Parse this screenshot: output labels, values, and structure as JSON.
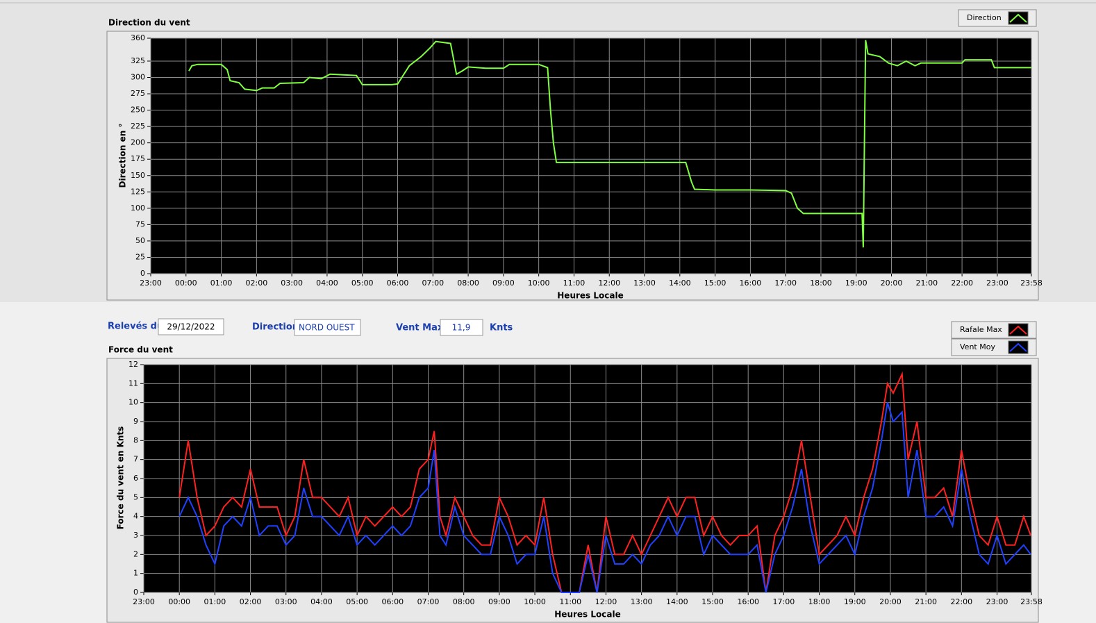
{
  "chart_data": [
    {
      "type": "line",
      "title": "Direction du vent",
      "x_label": "Heures Locale",
      "y_label": "Direction en °",
      "x": [
        0.083,
        0.167,
        0.333,
        1.0,
        1.167,
        1.25,
        1.5,
        1.667,
        2.0,
        2.167,
        2.5,
        2.667,
        3.333,
        3.5,
        3.833,
        4.083,
        4.833,
        5.0,
        5.833,
        6.0,
        6.333,
        6.667,
        6.917,
        7.083,
        7.5,
        7.667,
        7.833,
        8.0,
        8.5,
        9.0,
        9.167,
        9.5,
        10.0,
        10.25,
        10.333,
        10.417,
        10.5,
        11.0,
        13.0,
        14.167,
        14.333,
        14.417,
        15.0,
        16.0,
        17.0,
        17.167,
        17.333,
        17.5,
        18.0,
        19.0,
        19.167,
        19.2,
        19.233,
        19.267,
        19.333,
        19.667,
        19.917,
        20.167,
        20.417,
        20.667,
        20.833,
        21.5,
        22.0,
        22.083,
        22.833,
        22.917,
        23.967
      ],
      "series": [
        {
          "name": "Direction",
          "color": "#80ff40",
          "values": [
            310,
            318,
            320,
            320,
            312,
            295,
            292,
            282,
            280,
            284,
            284,
            291,
            292,
            300,
            298,
            305,
            303,
            289,
            289,
            290,
            318,
            332,
            345,
            355,
            352,
            305,
            310,
            316,
            314,
            314,
            320,
            320,
            320,
            315,
            250,
            200,
            170,
            170,
            170,
            170,
            140,
            129,
            128,
            128,
            127,
            123,
            100,
            92,
            92,
            92,
            92,
            40,
            200,
            357,
            336,
            332,
            322,
            318,
            325,
            318,
            322,
            322,
            322,
            327,
            327,
            315,
            315
          ]
        }
      ],
      "xlim": [
        -1,
        23.967
      ],
      "xticks": [
        {
          "value": -1,
          "label": "23:00"
        },
        {
          "value": 0,
          "label": "00:00"
        },
        {
          "value": 1,
          "label": "01:00"
        },
        {
          "value": 2,
          "label": "02:00"
        },
        {
          "value": 3,
          "label": "03:00"
        },
        {
          "value": 4,
          "label": "04:00"
        },
        {
          "value": 5,
          "label": "05:00"
        },
        {
          "value": 6,
          "label": "06:00"
        },
        {
          "value": 7,
          "label": "07:00"
        },
        {
          "value": 8,
          "label": "08:00"
        },
        {
          "value": 9,
          "label": "09:00"
        },
        {
          "value": 10,
          "label": "10:00"
        },
        {
          "value": 11,
          "label": "11:00"
        },
        {
          "value": 12,
          "label": "12:00"
        },
        {
          "value": 13,
          "label": "13:00"
        },
        {
          "value": 14,
          "label": "14:00"
        },
        {
          "value": 15,
          "label": "15:00"
        },
        {
          "value": 16,
          "label": "16:00"
        },
        {
          "value": 17,
          "label": "17:00"
        },
        {
          "value": 18,
          "label": "18:00"
        },
        {
          "value": 19,
          "label": "19:00"
        },
        {
          "value": 20,
          "label": "20:00"
        },
        {
          "value": 21,
          "label": "21:00"
        },
        {
          "value": 22,
          "label": "22:00"
        },
        {
          "value": 23,
          "label": "23:00"
        },
        {
          "value": 23.967,
          "label": "23:58"
        }
      ],
      "ylim": [
        0,
        360
      ],
      "yticks": [
        0,
        25,
        50,
        75,
        100,
        125,
        150,
        175,
        200,
        225,
        250,
        275,
        300,
        325,
        360
      ],
      "grid": true
    },
    {
      "type": "line",
      "title": "Force du vent",
      "x_label": "Heures Locale",
      "y_label": "Force du vent en Knts",
      "x": [
        0,
        0.25,
        0.5,
        0.75,
        1,
        1.25,
        1.5,
        1.75,
        2,
        2.25,
        2.5,
        2.75,
        3,
        3.25,
        3.5,
        3.75,
        4,
        4.25,
        4.5,
        4.75,
        5,
        5.25,
        5.5,
        5.75,
        6,
        6.25,
        6.5,
        6.75,
        7,
        7.17,
        7.33,
        7.5,
        7.75,
        8,
        8.25,
        8.5,
        8.75,
        9,
        9.25,
        9.5,
        9.75,
        10,
        10.25,
        10.5,
        10.75,
        11,
        11.25,
        11.5,
        11.75,
        12,
        12.25,
        12.5,
        12.75,
        13,
        13.25,
        13.5,
        13.75,
        14,
        14.25,
        14.5,
        14.75,
        15,
        15.25,
        15.5,
        15.75,
        16,
        16.25,
        16.5,
        16.75,
        17,
        17.25,
        17.5,
        17.75,
        18,
        18.25,
        18.5,
        18.75,
        19,
        19.25,
        19.5,
        19.75,
        19.92,
        20.08,
        20.33,
        20.5,
        20.75,
        21,
        21.25,
        21.5,
        21.75,
        22,
        22.25,
        22.5,
        22.75,
        23,
        23.25,
        23.5,
        23.75,
        23.95
      ],
      "series": [
        {
          "name": "Rafale Max",
          "color": "#ff2020",
          "values": [
            5,
            8,
            5,
            3,
            3.5,
            4.5,
            5,
            4.5,
            6.5,
            4.5,
            4.5,
            4.5,
            3,
            4,
            7,
            5,
            5,
            4.5,
            4,
            5,
            3,
            4,
            3.5,
            4,
            4.5,
            4,
            4.5,
            6.5,
            7,
            8.5,
            4,
            3,
            5,
            4,
            3,
            2.5,
            2.5,
            5,
            4,
            2.5,
            3,
            2.5,
            5,
            2,
            0,
            0,
            0,
            2.5,
            0,
            4,
            2,
            2,
            3,
            2,
            3,
            4,
            5,
            4,
            5,
            5,
            3,
            4,
            3,
            2.5,
            3,
            3,
            3.5,
            0,
            3,
            4,
            5.5,
            8,
            5,
            2,
            2.5,
            3,
            4,
            3,
            5,
            6.5,
            9,
            11,
            10.5,
            11.5,
            7,
            9,
            5,
            5,
            5.5,
            4,
            7.5,
            5,
            3,
            2.5,
            4,
            2.5,
            2.5,
            4,
            3
          ]
        },
        {
          "name": "Vent Moy",
          "color": "#2040ff",
          "values": [
            4,
            5,
            4,
            2.5,
            1.5,
            3.5,
            4,
            3.5,
            5,
            3,
            3.5,
            3.5,
            2.5,
            3,
            5.5,
            4,
            4,
            3.5,
            3,
            4,
            2.5,
            3,
            2.5,
            3,
            3.5,
            3,
            3.5,
            5,
            5.5,
            7.5,
            3,
            2.5,
            4.5,
            3,
            2.5,
            2,
            2,
            4,
            3,
            1.5,
            2,
            2,
            4,
            1,
            0,
            0,
            0,
            2,
            0,
            3,
            1.5,
            1.5,
            2,
            1.5,
            2.5,
            3,
            4,
            3,
            4,
            4,
            2,
            3,
            2.5,
            2,
            2,
            2,
            2.5,
            0,
            2,
            3,
            4.5,
            6.5,
            3.5,
            1.5,
            2,
            2.5,
            3,
            2,
            4,
            5.5,
            8,
            10,
            9,
            9.5,
            5,
            7.5,
            4,
            4,
            4.5,
            3.5,
            6.5,
            4,
            2,
            1.5,
            3,
            1.5,
            2,
            2.5,
            2
          ]
        }
      ],
      "xlim": [
        -1,
        23.967
      ],
      "xticks": [
        {
          "value": -1,
          "label": "23:00"
        },
        {
          "value": 0,
          "label": "00:00"
        },
        {
          "value": 1,
          "label": "01:00"
        },
        {
          "value": 2,
          "label": "02:00"
        },
        {
          "value": 3,
          "label": "03:00"
        },
        {
          "value": 4,
          "label": "04:00"
        },
        {
          "value": 5,
          "label": "05:00"
        },
        {
          "value": 6,
          "label": "06:00"
        },
        {
          "value": 7,
          "label": "07:00"
        },
        {
          "value": 8,
          "label": "08:00"
        },
        {
          "value": 9,
          "label": "09:00"
        },
        {
          "value": 10,
          "label": "10:00"
        },
        {
          "value": 11,
          "label": "11:00"
        },
        {
          "value": 12,
          "label": "12:00"
        },
        {
          "value": 13,
          "label": "13:00"
        },
        {
          "value": 14,
          "label": "14:00"
        },
        {
          "value": 15,
          "label": "15:00"
        },
        {
          "value": 16,
          "label": "16:00"
        },
        {
          "value": 17,
          "label": "17:00"
        },
        {
          "value": 18,
          "label": "18:00"
        },
        {
          "value": 19,
          "label": "19:00"
        },
        {
          "value": 20,
          "label": "20:00"
        },
        {
          "value": 21,
          "label": "21:00"
        },
        {
          "value": 22,
          "label": "22:00"
        },
        {
          "value": 23,
          "label": "23:00"
        },
        {
          "value": 23.967,
          "label": "23:58"
        }
      ],
      "ylim": [
        0,
        12
      ],
      "yticks": [
        0,
        1,
        2,
        3,
        4,
        5,
        6,
        7,
        8,
        9,
        10,
        11,
        12
      ],
      "grid": true
    }
  ],
  "form": {
    "fields": [
      {
        "label": "Relevés du",
        "value": "29/12/2022"
      },
      {
        "label": "Direction",
        "value": "NORD OUEST"
      },
      {
        "label": "Vent Max",
        "value": "11,9",
        "unit": "Knts"
      }
    ]
  }
}
